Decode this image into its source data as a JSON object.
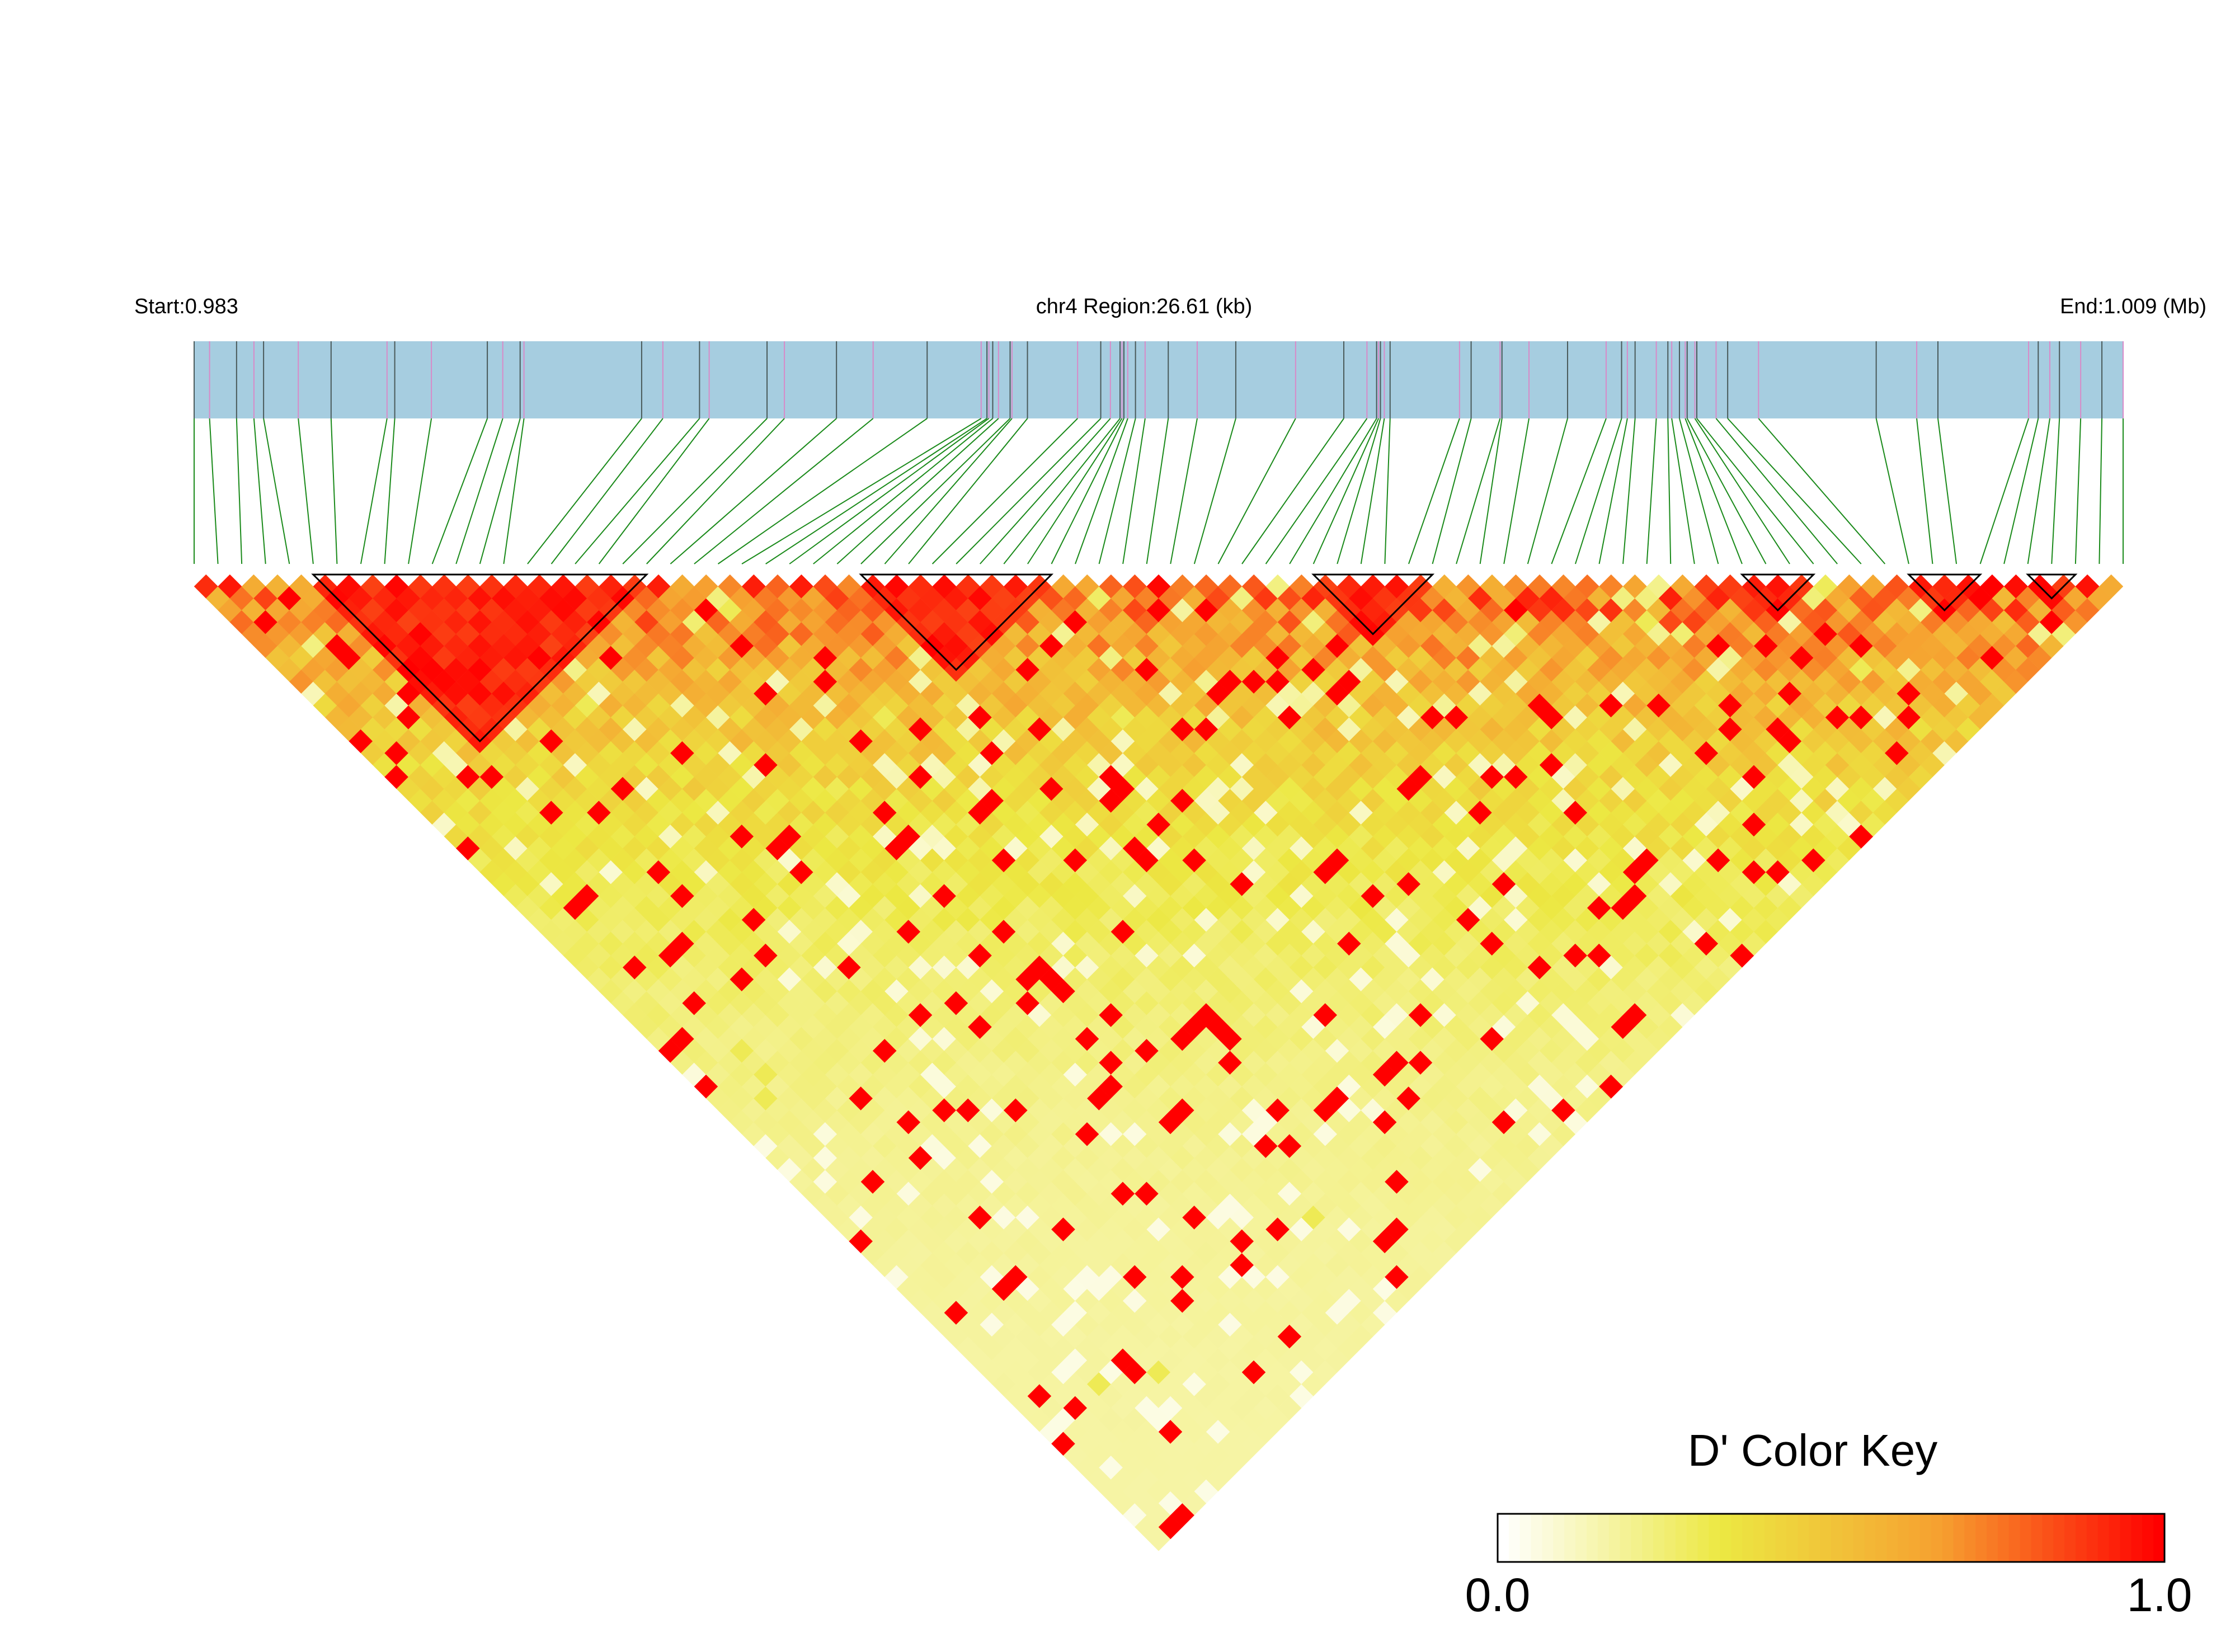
{
  "chart_data": {
    "type": "heatmap",
    "subtype": "ld-triangle",
    "chromosome": "chr4",
    "header": {
      "start_label": "Start:0.983",
      "region_label": "chr4 Region:26.61 (kb)",
      "end_label": "End:1.009 (Mb)"
    },
    "region_start_mb": 0.983,
    "region_end_mb": 1.009,
    "region_kb": 26.61,
    "n_snps": 82,
    "snp_positions_fraction": [
      0.0,
      0.008,
      0.022,
      0.031,
      0.036,
      0.054,
      0.071,
      0.1,
      0.104,
      0.123,
      0.152,
      0.16,
      0.169,
      0.171,
      0.232,
      0.243,
      0.262,
      0.267,
      0.297,
      0.306,
      0.333,
      0.352,
      0.38,
      0.408,
      0.411,
      0.412,
      0.414,
      0.417,
      0.423,
      0.424,
      0.432,
      0.458,
      0.47,
      0.475,
      0.48,
      0.481,
      0.482,
      0.484,
      0.488,
      0.493,
      0.505,
      0.52,
      0.54,
      0.571,
      0.596,
      0.608,
      0.613,
      0.614,
      0.615,
      0.617,
      0.62,
      0.656,
      0.662,
      0.677,
      0.678,
      0.692,
      0.712,
      0.732,
      0.74,
      0.743,
      0.747,
      0.758,
      0.764,
      0.766,
      0.77,
      0.773,
      0.774,
      0.778,
      0.779,
      0.789,
      0.795,
      0.811,
      0.872,
      0.893,
      0.904,
      0.951,
      0.956,
      0.962,
      0.967,
      0.978,
      0.989,
      1.0
    ],
    "ld_blocks": [
      [
        5,
        19
      ],
      [
        28,
        36
      ],
      [
        47,
        52
      ],
      [
        65,
        68
      ],
      [
        72,
        75
      ],
      [
        77,
        79
      ]
    ],
    "color_key": {
      "title": "D' Color Key",
      "min_label": "0.0",
      "max_label": "1.0",
      "range": [
        0,
        1
      ],
      "colors": [
        "#ffffff",
        "#ece842",
        "#f6a030",
        "#ff0000"
      ]
    },
    "metric": "D'",
    "band_color": "#a6cde0",
    "connector_color": "#1a8a1a",
    "tick_colors": [
      "#4a5a5a",
      "#d88ac8"
    ]
  }
}
